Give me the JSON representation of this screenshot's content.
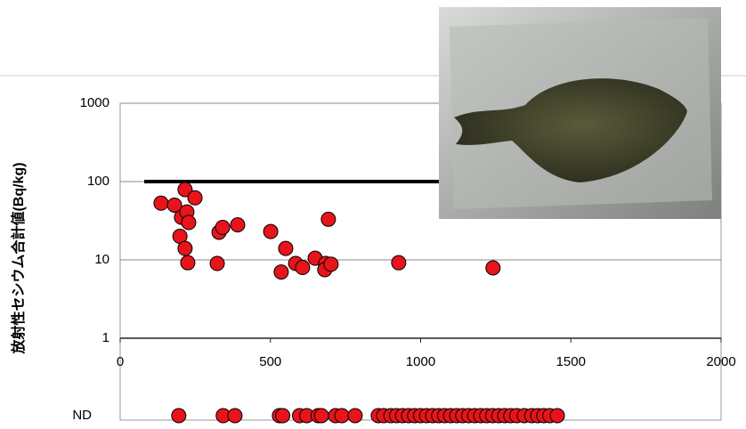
{
  "chart_data": {
    "type": "scatter",
    "y_label": "放射性セシウム合計値(Bq/kg)",
    "xlim": [
      0,
      2000
    ],
    "xticks": [
      0,
      500,
      1000,
      1500,
      2000
    ],
    "ylim": [
      1,
      1000
    ],
    "yticks": [
      1,
      10,
      100,
      1000
    ],
    "log_y": true,
    "grid": true,
    "threshold": {
      "value": 100,
      "x": [
        80,
        2000
      ],
      "color": "#000000"
    },
    "series": [
      {
        "color": "#e8141b",
        "x": [
          136,
          181,
          216,
          204,
          222,
          228,
          199,
          216,
          225,
          249,
          329,
          341,
          391,
          323,
          501,
          551,
          536,
          584,
          607,
          649,
          684,
          681,
          702,
          693,
          927,
          1241
        ],
        "values": [
          53,
          50,
          79,
          35,
          41,
          30,
          20,
          14,
          9.2,
          62,
          22.5,
          26,
          28,
          9,
          23,
          14,
          7,
          9,
          8,
          10.5,
          9,
          7.5,
          8.8,
          33,
          9.2,
          7.9
        ]
      }
    ],
    "nd": {
      "label": "ND",
      "color": "#e8141b",
      "x": [
        195,
        343,
        382,
        530,
        541,
        597,
        621,
        659,
        670,
        717,
        738,
        782,
        859,
        877,
        901,
        920,
        940,
        960,
        980,
        1000,
        1020,
        1040,
        1060,
        1080,
        1100,
        1120,
        1140,
        1160,
        1180,
        1200,
        1220,
        1240,
        1260,
        1280,
        1300,
        1320,
        1345,
        1370,
        1390,
        1410,
        1430,
        1455
      ]
    }
  }
}
